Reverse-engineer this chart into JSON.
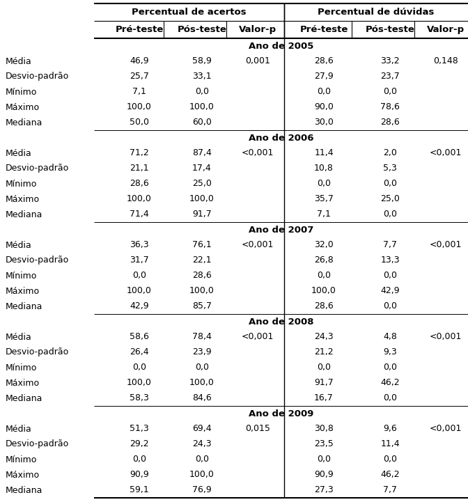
{
  "header1": "Percentual de acertos",
  "header2": "Percentual de dúvidas",
  "col_headers": [
    "Pré-teste",
    "Pós-teste",
    "Valor-p",
    "Pré-teste",
    "Pós-teste",
    "Valor-p"
  ],
  "years": [
    "Ano de 2005",
    "Ano de 2006",
    "Ano de 2007",
    "Ano de 2008",
    "Ano de 2009"
  ],
  "row_labels": [
    "Média",
    "Desvio-padrão",
    "Mínimo",
    "Máximo",
    "Mediana"
  ],
  "data": {
    "2005": {
      "acertos_pre": [
        "46,9",
        "25,7",
        "7,1",
        "100,0",
        "50,0"
      ],
      "acertos_pos": [
        "58,9",
        "33,1",
        "0,0",
        "100,0",
        "60,0"
      ],
      "acertos_p": [
        "0,001",
        "",
        "",
        "",
        ""
      ],
      "duvidas_pre": [
        "28,6",
        "27,9",
        "0,0",
        "90,0",
        "30,0"
      ],
      "duvidas_pos": [
        "33,2",
        "23,7",
        "0,0",
        "78,6",
        "28,6"
      ],
      "duvidas_p": [
        "0,148",
        "",
        "",
        "",
        ""
      ]
    },
    "2006": {
      "acertos_pre": [
        "71,2",
        "21,1",
        "28,6",
        "100,0",
        "71,4"
      ],
      "acertos_pos": [
        "87,4",
        "17,4",
        "25,0",
        "100,0",
        "91,7"
      ],
      "acertos_p": [
        "<0,001",
        "",
        "",
        "",
        ""
      ],
      "duvidas_pre": [
        "11,4",
        "10,8",
        "0,0",
        "35,7",
        "7,1"
      ],
      "duvidas_pos": [
        "2,0",
        "5,3",
        "0,0",
        "25,0",
        "0,0"
      ],
      "duvidas_p": [
        "<0,001",
        "",
        "",
        "",
        ""
      ]
    },
    "2007": {
      "acertos_pre": [
        "36,3",
        "31,7",
        "0,0",
        "100,0",
        "42,9"
      ],
      "acertos_pos": [
        "76,1",
        "22,1",
        "28,6",
        "100,0",
        "85,7"
      ],
      "acertos_p": [
        "<0,001",
        "",
        "",
        "",
        ""
      ],
      "duvidas_pre": [
        "32,0",
        "26,8",
        "0,0",
        "100,0",
        "28,6"
      ],
      "duvidas_pos": [
        "7,7",
        "13,3",
        "0,0",
        "42,9",
        "0,0"
      ],
      "duvidas_p": [
        "<0,001",
        "",
        "",
        "",
        ""
      ]
    },
    "2008": {
      "acertos_pre": [
        "58,6",
        "26,4",
        "0,0",
        "100,0",
        "58,3"
      ],
      "acertos_pos": [
        "78,4",
        "23,9",
        "0,0",
        "100,0",
        "84,6"
      ],
      "acertos_p": [
        "<0,001",
        "",
        "",
        "",
        ""
      ],
      "duvidas_pre": [
        "24,3",
        "21,2",
        "0,0",
        "91,7",
        "16,7"
      ],
      "duvidas_pos": [
        "4,8",
        "9,3",
        "0,0",
        "46,2",
        "0,0"
      ],
      "duvidas_p": [
        "<0,001",
        "",
        "",
        "",
        ""
      ]
    },
    "2009": {
      "acertos_pre": [
        "51,3",
        "29,2",
        "0,0",
        "90,9",
        "59,1"
      ],
      "acertos_pos": [
        "69,4",
        "24,3",
        "0,0",
        "100,0",
        "76,9"
      ],
      "acertos_p": [
        "0,015",
        "",
        "",
        "",
        ""
      ],
      "duvidas_pre": [
        "30,8",
        "23,5",
        "0,0",
        "90,9",
        "27,3"
      ],
      "duvidas_pos": [
        "9,6",
        "11,4",
        "0,0",
        "46,2",
        "7,7"
      ],
      "duvidas_p": [
        "<0,001",
        "",
        "",
        "",
        ""
      ]
    }
  },
  "year_keys": [
    "2005",
    "2006",
    "2007",
    "2008",
    "2009"
  ],
  "bg_color": "#ffffff",
  "text_color": "#000000",
  "font_size": 9.0,
  "header_font_size": 9.5
}
